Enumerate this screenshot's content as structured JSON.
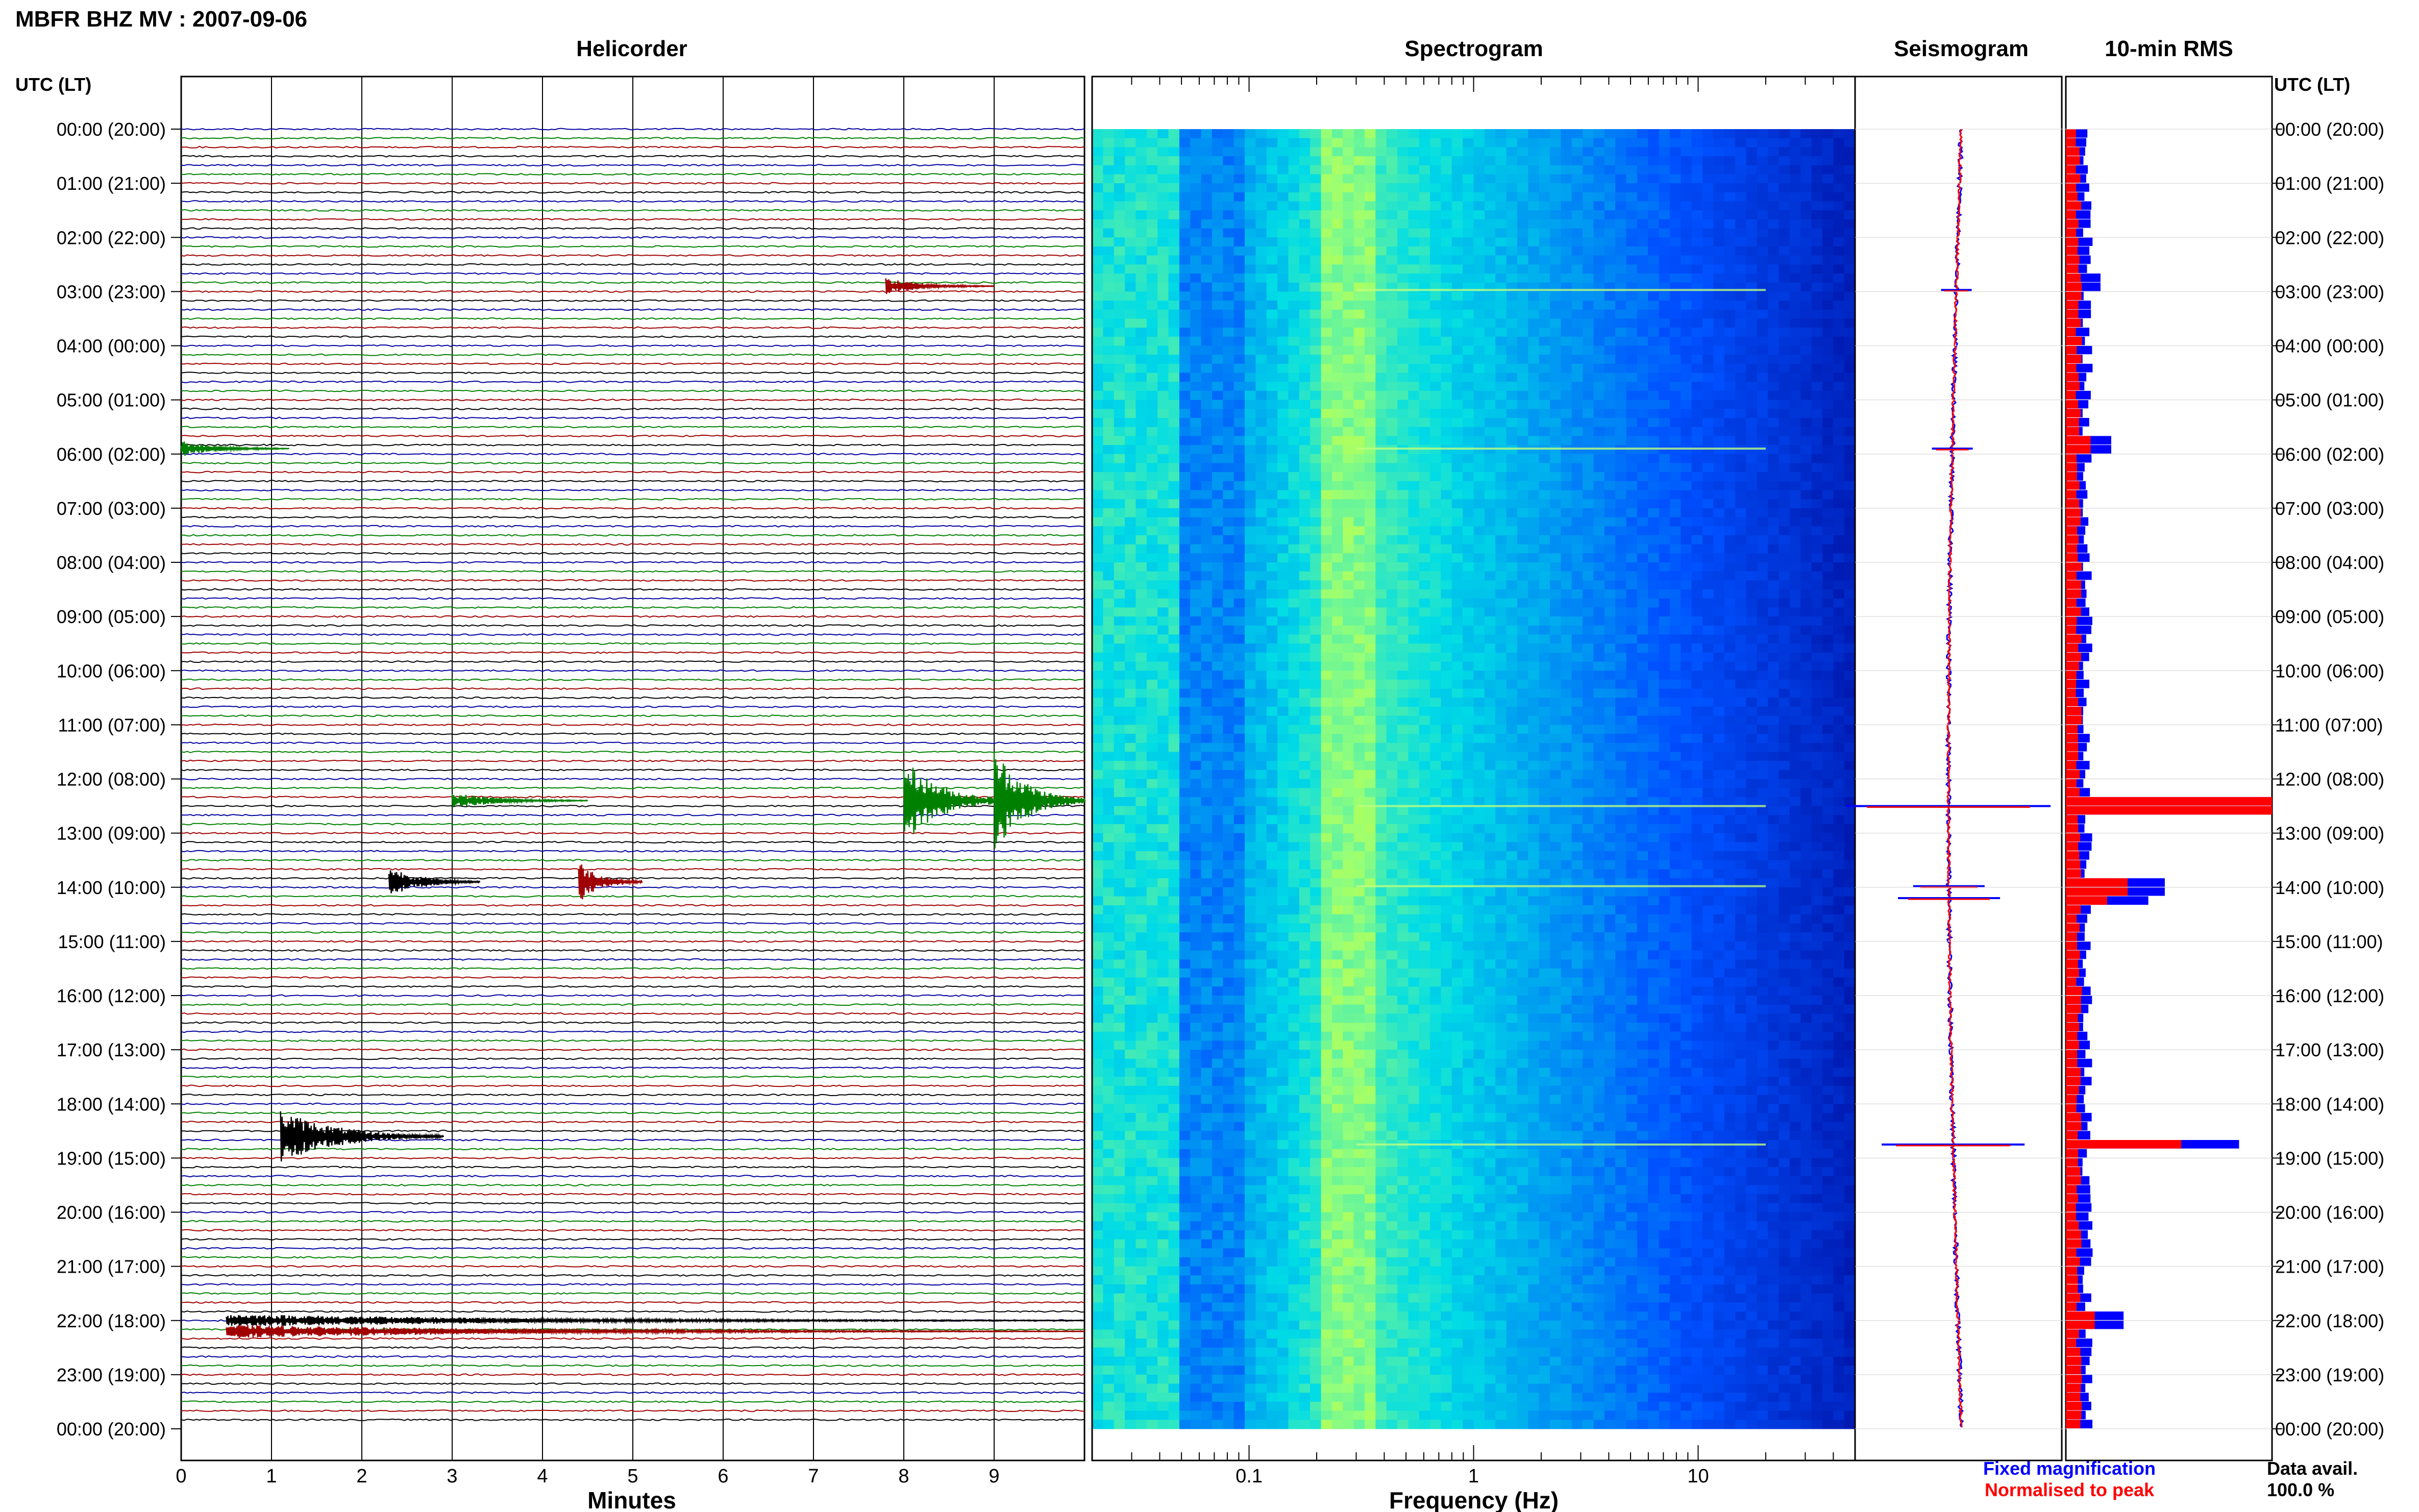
{
  "header": {
    "title": "MBFR BHZ MV : 2007-09-06"
  },
  "panels": {
    "helicorder": "Helicorder",
    "spectrogram": "Spectrogram",
    "seismogram": "Seismogram",
    "rms": "10-min RMS"
  },
  "axis_titles": {
    "left_time": "UTC (LT)",
    "right_time": "UTC (LT)",
    "minutes": "Minutes",
    "frequency": "Frequency (Hz)"
  },
  "legend": {
    "fixed": "Fixed magnification",
    "normalised": "Normalised to peak",
    "fixed_color": "#0000ff",
    "normalised_color": "#ff0000"
  },
  "data_avail": {
    "label": "Data avail.",
    "value": "100.0 %"
  },
  "colors": {
    "trace_cycle": [
      "#0000a0",
      "#008000",
      "#a00000",
      "#000000"
    ],
    "spectrogram_low": "#00008b",
    "spectrogram_high": "#ffff00"
  },
  "chart_data": [
    {
      "type": "line",
      "name": "helicorder",
      "xlabel": "Minutes",
      "ylabel": "UTC (LT)",
      "xlim": [
        0,
        10
      ],
      "x_ticks": [
        0,
        1,
        2,
        3,
        4,
        5,
        6,
        7,
        8,
        9
      ],
      "time_labels": [
        "00:00 (20:00)",
        "01:00 (21:00)",
        "02:00 (22:00)",
        "03:00 (23:00)",
        "04:00 (00:00)",
        "05:00 (01:00)",
        "06:00 (02:00)",
        "07:00 (03:00)",
        "08:00 (04:00)",
        "09:00 (05:00)",
        "10:00 (06:00)",
        "11:00 (07:00)",
        "12:00 (08:00)",
        "13:00 (09:00)",
        "14:00 (10:00)",
        "15:00 (11:00)",
        "16:00 (12:00)",
        "17:00 (13:00)",
        "18:00 (14:00)",
        "19:00 (15:00)",
        "20:00 (16:00)",
        "21:00 (17:00)",
        "22:00 (18:00)",
        "23:00 (19:00)",
        "00:00 (20:00)"
      ],
      "lines_count": 144,
      "minutes_per_line": 10,
      "events": [
        {
          "hour": 2.9,
          "minute": 7.8,
          "amp": 0.3,
          "dur": 1.2,
          "color": "#a00000"
        },
        {
          "hour": 5.9,
          "minute": 0.0,
          "amp": 0.3,
          "dur": 1.2,
          "color": "#008000"
        },
        {
          "hour": 12.4,
          "minute": 3.0,
          "amp": 0.3,
          "dur": 1.5,
          "color": "#008000"
        },
        {
          "hour": 12.4,
          "minute": 8.0,
          "amp": 1.6,
          "dur": 1.2,
          "color": "#008000"
        },
        {
          "hour": 12.4,
          "minute": 9.0,
          "amp": 2.0,
          "dur": 1.0,
          "color": "#008000"
        },
        {
          "hour": 13.9,
          "minute": 2.3,
          "amp": 0.6,
          "dur": 1.0,
          "color": "#000000"
        },
        {
          "hour": 13.9,
          "minute": 4.4,
          "amp": 0.8,
          "dur": 0.7,
          "color": "#a00000"
        },
        {
          "hour": 18.6,
          "minute": 1.1,
          "amp": 1.0,
          "dur": 1.8,
          "color": "#000000"
        },
        {
          "hour": 22.0,
          "minute": 0.5,
          "amp": 0.25,
          "dur": 9.5,
          "color": "#000000"
        },
        {
          "hour": 22.2,
          "minute": 0.5,
          "amp": 0.25,
          "dur": 9.5,
          "color": "#a00000"
        }
      ]
    },
    {
      "type": "heatmap",
      "name": "spectrogram",
      "xlabel": "Frequency (Hz)",
      "x_scale": "log",
      "xlim": [
        0.02,
        50
      ],
      "x_ticks": [
        0.1,
        1,
        10
      ],
      "x_tick_labels": [
        "0.1",
        "1",
        "10"
      ],
      "peak_band_hz": [
        0.2,
        0.35
      ],
      "bright_lines_hours": [
        2.97,
        5.9,
        12.5,
        13.98,
        18.75
      ]
    },
    {
      "type": "line",
      "name": "seismogram",
      "series": [
        {
          "name": "Fixed magnification",
          "color": "#0000ff"
        },
        {
          "name": "Normalised to peak",
          "color": "#ff0000"
        }
      ],
      "spikes": [
        {
          "hour": 2.97,
          "amp": 0.15
        },
        {
          "hour": 5.9,
          "amp": 0.2
        },
        {
          "hour": 12.5,
          "amp": 1.0
        },
        {
          "hour": 13.98,
          "amp": 0.35
        },
        {
          "hour": 14.2,
          "amp": 0.5
        },
        {
          "hour": 18.75,
          "amp": 0.7
        }
      ]
    },
    {
      "type": "bar",
      "name": "10-min RMS",
      "orientation": "horizontal",
      "bin_minutes": 10,
      "baseline_fixed": 0.25,
      "baseline_normalised": 0.15,
      "peaks": [
        {
          "hour": 2.9,
          "fixed": 0.42,
          "normalised": 0.18
        },
        {
          "hour": 5.9,
          "fixed": 0.55,
          "normalised": 0.3
        },
        {
          "hour": 12.5,
          "fixed": 2.5,
          "normalised": 2.5
        },
        {
          "hour": 13.98,
          "fixed": 1.2,
          "normalised": 0.75
        },
        {
          "hour": 14.15,
          "fixed": 1.0,
          "normalised": 0.5
        },
        {
          "hour": 18.75,
          "fixed": 2.1,
          "normalised": 1.4
        },
        {
          "hour": 22.0,
          "fixed": 0.7,
          "normalised": 0.35
        }
      ]
    }
  ]
}
